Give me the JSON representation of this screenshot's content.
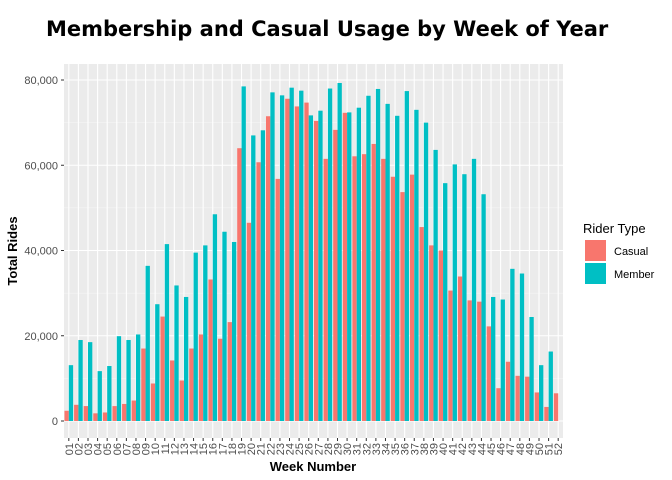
{
  "chart_data": {
    "type": "bar",
    "title": "Membership and Casual Usage by Week of Year",
    "xlabel": "Week Number",
    "ylabel": "Total Rides",
    "ylim": [
      0,
      82000
    ],
    "yticks": [
      0,
      20000,
      40000,
      60000,
      80000
    ],
    "ytick_labels": [
      "0",
      "20,000",
      "40,000",
      "60,000",
      "80,000"
    ],
    "grid": true,
    "legend_placement": "right",
    "legend_title": "Rider Type",
    "categories": [
      "01",
      "02",
      "03",
      "04",
      "05",
      "06",
      "07",
      "08",
      "09",
      "10",
      "11",
      "12",
      "13",
      "14",
      "15",
      "16",
      "17",
      "18",
      "19",
      "20",
      "21",
      "22",
      "23",
      "24",
      "25",
      "26",
      "27",
      "28",
      "29",
      "30",
      "31",
      "32",
      "33",
      "34",
      "35",
      "36",
      "37",
      "38",
      "39",
      "40",
      "41",
      "42",
      "43",
      "44",
      "45",
      "46",
      "47",
      "48",
      "49",
      "50",
      "51",
      "52"
    ],
    "series": [
      {
        "name": "Casual",
        "color": "#F8766D",
        "values": [
          2400,
          3800,
          3500,
          1800,
          2000,
          3500,
          4000,
          4800,
          17000,
          8800,
          24500,
          14200,
          9500,
          17000,
          20300,
          33200,
          19300,
          23200,
          64000,
          46500,
          60700,
          71500,
          56800,
          75600,
          73800,
          74700,
          70400,
          61500,
          68300,
          72300,
          62100,
          62600,
          65000,
          61500,
          57300,
          53700,
          57800,
          45500,
          41200,
          40000,
          30600,
          33900,
          28300,
          28000,
          22200,
          7700,
          13900,
          10600,
          10400,
          6700,
          3300,
          6500
        ]
      },
      {
        "name": "Member",
        "color": "#00BFC4",
        "values": [
          13100,
          19000,
          18500,
          11700,
          12900,
          19900,
          19000,
          20300,
          36400,
          27400,
          41500,
          31800,
          29100,
          39500,
          41200,
          48500,
          44400,
          42000,
          78500,
          67000,
          68200,
          77100,
          76400,
          78200,
          77500,
          71700,
          72800,
          78000,
          79300,
          72400,
          73500,
          76300,
          77900,
          74400,
          71600,
          77400,
          73000,
          70000,
          63600,
          55800,
          60200,
          57900,
          61500,
          53200,
          29100,
          28500,
          35700,
          34600,
          24400,
          13100,
          16300,
          0
        ]
      }
    ]
  }
}
